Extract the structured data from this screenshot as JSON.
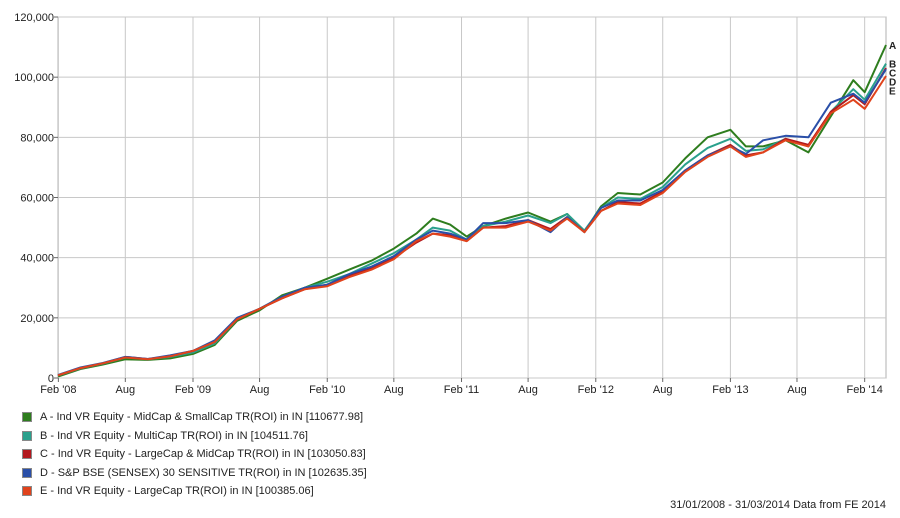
{
  "chart_data": {
    "type": "line",
    "title": "",
    "xlabel": "",
    "ylabel": "",
    "ylim": [
      0,
      120000
    ],
    "yticks": [
      0,
      20000,
      40000,
      60000,
      80000,
      100000,
      120000
    ],
    "ytick_labels": [
      "0",
      "20,000",
      "40,000",
      "60,000",
      "80,000",
      "100,000",
      "120,000"
    ],
    "xlim": [
      "2008-01-31",
      "2014-03-31"
    ],
    "xticks": [
      "2008-02-01",
      "2008-08-01",
      "2009-02-01",
      "2009-08-01",
      "2010-02-01",
      "2010-08-01",
      "2011-02-01",
      "2011-08-01",
      "2012-02-01",
      "2012-08-01",
      "2013-02-01",
      "2013-08-01",
      "2014-02-01"
    ],
    "xtick_labels": [
      "Feb '08",
      "Aug",
      "Feb '09",
      "Aug",
      "Feb '10",
      "Aug",
      "Feb '11",
      "Aug",
      "Feb '12",
      "Aug",
      "Feb '13",
      "Aug",
      "Feb '14"
    ],
    "grid": true,
    "legend_position": "bottom",
    "series": [
      {
        "name": "A - Ind VR Equity - MidCap & SmallCap TR(ROI) in IN [110677.98]",
        "end_label": "A",
        "color": "#2e7d1e",
        "points": [
          [
            "2008-01-31",
            500
          ],
          [
            "2008-04-01",
            3000
          ],
          [
            "2008-06-01",
            4500
          ],
          [
            "2008-08-01",
            6200
          ],
          [
            "2008-10-01",
            6000
          ],
          [
            "2008-12-01",
            6500
          ],
          [
            "2009-02-01",
            8000
          ],
          [
            "2009-04-01",
            11000
          ],
          [
            "2009-06-01",
            19000
          ],
          [
            "2009-08-01",
            22500
          ],
          [
            "2009-10-01",
            27500
          ],
          [
            "2009-12-01",
            30000
          ],
          [
            "2010-02-01",
            33000
          ],
          [
            "2010-04-01",
            36000
          ],
          [
            "2010-06-01",
            39000
          ],
          [
            "2010-08-01",
            43000
          ],
          [
            "2010-10-01",
            48000
          ],
          [
            "2010-11-15",
            53000
          ],
          [
            "2011-01-01",
            51000
          ],
          [
            "2011-02-15",
            47000
          ],
          [
            "2011-04-01",
            50500
          ],
          [
            "2011-06-01",
            53000
          ],
          [
            "2011-08-01",
            55000
          ],
          [
            "2011-10-01",
            52000
          ],
          [
            "2011-11-15",
            54500
          ],
          [
            "2012-01-01",
            48500
          ],
          [
            "2012-02-15",
            57000
          ],
          [
            "2012-04-01",
            61500
          ],
          [
            "2012-06-01",
            61000
          ],
          [
            "2012-08-01",
            65000
          ],
          [
            "2012-10-01",
            73000
          ],
          [
            "2012-12-01",
            80000
          ],
          [
            "2013-02-01",
            82500
          ],
          [
            "2013-03-15",
            77000
          ],
          [
            "2013-05-01",
            77000
          ],
          [
            "2013-07-01",
            79000
          ],
          [
            "2013-09-01",
            75000
          ],
          [
            "2013-11-01",
            87000
          ],
          [
            "2014-01-01",
            99000
          ],
          [
            "2014-02-01",
            95000
          ],
          [
            "2014-03-31",
            110678
          ]
        ]
      },
      {
        "name": "B - Ind VR Equity - MultiCap TR(ROI) in IN [104511.76]",
        "end_label": "B",
        "color": "#2aa08c",
        "points": [
          [
            "2008-01-31",
            800
          ],
          [
            "2008-04-01",
            3200
          ],
          [
            "2008-06-01",
            4800
          ],
          [
            "2008-08-01",
            6800
          ],
          [
            "2008-10-01",
            6200
          ],
          [
            "2008-12-01",
            7000
          ],
          [
            "2009-02-01",
            8500
          ],
          [
            "2009-04-01",
            11500
          ],
          [
            "2009-06-01",
            19500
          ],
          [
            "2009-08-01",
            23000
          ],
          [
            "2009-10-01",
            27000
          ],
          [
            "2009-12-01",
            30000
          ],
          [
            "2010-02-01",
            32000
          ],
          [
            "2010-04-01",
            34500
          ],
          [
            "2010-06-01",
            38000
          ],
          [
            "2010-08-01",
            41500
          ],
          [
            "2010-10-01",
            46000
          ],
          [
            "2010-11-15",
            50000
          ],
          [
            "2011-01-01",
            49000
          ],
          [
            "2011-02-15",
            46000
          ],
          [
            "2011-04-01",
            50500
          ],
          [
            "2011-06-01",
            52000
          ],
          [
            "2011-08-01",
            54000
          ],
          [
            "2011-10-01",
            51500
          ],
          [
            "2011-11-15",
            54500
          ],
          [
            "2012-01-01",
            49000
          ],
          [
            "2012-02-15",
            56500
          ],
          [
            "2012-04-01",
            60000
          ],
          [
            "2012-06-01",
            59500
          ],
          [
            "2012-08-01",
            63500
          ],
          [
            "2012-10-01",
            71000
          ],
          [
            "2012-12-01",
            76500
          ],
          [
            "2013-02-01",
            79500
          ],
          [
            "2013-03-15",
            75500
          ],
          [
            "2013-05-01",
            76000
          ],
          [
            "2013-07-01",
            79500
          ],
          [
            "2013-09-01",
            77000
          ],
          [
            "2013-11-01",
            88500
          ],
          [
            "2014-01-01",
            96000
          ],
          [
            "2014-02-01",
            92500
          ],
          [
            "2014-03-31",
            104512
          ]
        ]
      },
      {
        "name": "C - Ind VR Equity - LargeCap & MidCap TR(ROI) in IN [103050.83]",
        "end_label": "C",
        "color": "#b3191e",
        "points": [
          [
            "2008-01-31",
            900
          ],
          [
            "2008-04-01",
            3300
          ],
          [
            "2008-06-01",
            4900
          ],
          [
            "2008-08-01",
            7000
          ],
          [
            "2008-10-01",
            6300
          ],
          [
            "2008-12-01",
            7200
          ],
          [
            "2009-02-01",
            9000
          ],
          [
            "2009-04-01",
            12000
          ],
          [
            "2009-06-01",
            19500
          ],
          [
            "2009-08-01",
            23000
          ],
          [
            "2009-10-01",
            26500
          ],
          [
            "2009-12-01",
            29500
          ],
          [
            "2010-02-01",
            31000
          ],
          [
            "2010-04-01",
            34000
          ],
          [
            "2010-06-01",
            36500
          ],
          [
            "2010-08-01",
            40000
          ],
          [
            "2010-10-01",
            45000
          ],
          [
            "2010-11-15",
            48000
          ],
          [
            "2011-01-01",
            47500
          ],
          [
            "2011-02-15",
            45500
          ],
          [
            "2011-04-01",
            50000
          ],
          [
            "2011-06-01",
            50500
          ],
          [
            "2011-08-01",
            52500
          ],
          [
            "2011-10-01",
            49500
          ],
          [
            "2011-11-15",
            53500
          ],
          [
            "2012-01-01",
            48500
          ],
          [
            "2012-02-15",
            55500
          ],
          [
            "2012-04-01",
            58500
          ],
          [
            "2012-06-01",
            58000
          ],
          [
            "2012-08-01",
            62000
          ],
          [
            "2012-10-01",
            69000
          ],
          [
            "2012-12-01",
            74000
          ],
          [
            "2013-02-01",
            77500
          ],
          [
            "2013-03-15",
            74000
          ],
          [
            "2013-05-01",
            75000
          ],
          [
            "2013-07-01",
            79500
          ],
          [
            "2013-09-01",
            77500
          ],
          [
            "2013-11-01",
            88500
          ],
          [
            "2014-01-01",
            94000
          ],
          [
            "2014-02-01",
            91000
          ],
          [
            "2014-03-31",
            103051
          ]
        ]
      },
      {
        "name": "D - S&P BSE (SENSEX) 30 SENSITIVE TR(ROI) in IN [102635.35]",
        "end_label": "D",
        "color": "#2a4fa8",
        "points": [
          [
            "2008-01-31",
            1000
          ],
          [
            "2008-04-01",
            3500
          ],
          [
            "2008-06-01",
            5000
          ],
          [
            "2008-08-01",
            7000
          ],
          [
            "2008-10-01",
            6300
          ],
          [
            "2008-12-01",
            7500
          ],
          [
            "2009-02-01",
            9000
          ],
          [
            "2009-04-01",
            12500
          ],
          [
            "2009-06-01",
            20000
          ],
          [
            "2009-08-01",
            23000
          ],
          [
            "2009-10-01",
            27000
          ],
          [
            "2009-12-01",
            30000
          ],
          [
            "2010-02-01",
            31000
          ],
          [
            "2010-04-01",
            34500
          ],
          [
            "2010-06-01",
            37000
          ],
          [
            "2010-08-01",
            40500
          ],
          [
            "2010-10-01",
            46000
          ],
          [
            "2010-11-15",
            49000
          ],
          [
            "2011-01-01",
            48000
          ],
          [
            "2011-02-15",
            46000
          ],
          [
            "2011-04-01",
            51500
          ],
          [
            "2011-06-01",
            51500
          ],
          [
            "2011-08-01",
            52500
          ],
          [
            "2011-10-01",
            48500
          ],
          [
            "2011-11-15",
            53500
          ],
          [
            "2012-01-01",
            48500
          ],
          [
            "2012-02-15",
            56500
          ],
          [
            "2012-04-01",
            59000
          ],
          [
            "2012-06-01",
            59000
          ],
          [
            "2012-08-01",
            62500
          ],
          [
            "2012-10-01",
            69000
          ],
          [
            "2012-12-01",
            74000
          ],
          [
            "2013-02-01",
            77000
          ],
          [
            "2013-03-15",
            74500
          ],
          [
            "2013-05-01",
            79000
          ],
          [
            "2013-07-01",
            80500
          ],
          [
            "2013-09-01",
            80000
          ],
          [
            "2013-11-01",
            91500
          ],
          [
            "2014-01-01",
            94500
          ],
          [
            "2014-02-01",
            91500
          ],
          [
            "2014-03-31",
            102635
          ]
        ]
      },
      {
        "name": "E - Ind VR Equity - LargeCap TR(ROI) in IN [100385.06]",
        "end_label": "E",
        "color": "#e0431c",
        "points": [
          [
            "2008-01-31",
            900
          ],
          [
            "2008-04-01",
            3300
          ],
          [
            "2008-06-01",
            4900
          ],
          [
            "2008-08-01",
            6800
          ],
          [
            "2008-10-01",
            6200
          ],
          [
            "2008-12-01",
            7200
          ],
          [
            "2009-02-01",
            9000
          ],
          [
            "2009-04-01",
            12000
          ],
          [
            "2009-06-01",
            19500
          ],
          [
            "2009-08-01",
            23000
          ],
          [
            "2009-10-01",
            26500
          ],
          [
            "2009-12-01",
            29500
          ],
          [
            "2010-02-01",
            30500
          ],
          [
            "2010-04-01",
            33500
          ],
          [
            "2010-06-01",
            36000
          ],
          [
            "2010-08-01",
            39500
          ],
          [
            "2010-10-01",
            45500
          ],
          [
            "2010-11-15",
            48000
          ],
          [
            "2011-01-01",
            47000
          ],
          [
            "2011-02-15",
            45500
          ],
          [
            "2011-04-01",
            50000
          ],
          [
            "2011-06-01",
            50000
          ],
          [
            "2011-08-01",
            52000
          ],
          [
            "2011-10-01",
            49000
          ],
          [
            "2011-11-15",
            53000
          ],
          [
            "2012-01-01",
            48500
          ],
          [
            "2012-02-15",
            55500
          ],
          [
            "2012-04-01",
            58000
          ],
          [
            "2012-06-01",
            57500
          ],
          [
            "2012-08-01",
            61500
          ],
          [
            "2012-10-01",
            68500
          ],
          [
            "2012-12-01",
            73500
          ],
          [
            "2013-02-01",
            77000
          ],
          [
            "2013-03-15",
            73500
          ],
          [
            "2013-05-01",
            75000
          ],
          [
            "2013-07-01",
            79000
          ],
          [
            "2013-09-01",
            77000
          ],
          [
            "2013-11-01",
            88000
          ],
          [
            "2014-01-01",
            92500
          ],
          [
            "2014-02-01",
            89500
          ],
          [
            "2014-03-31",
            100385
          ]
        ]
      }
    ]
  },
  "footer_note": "31/01/2008 - 31/03/2014 Data from FE 2014"
}
